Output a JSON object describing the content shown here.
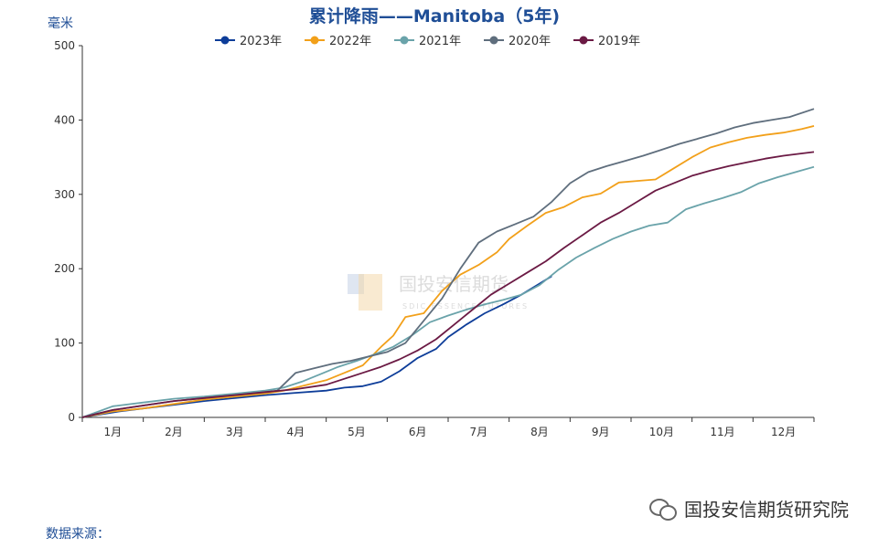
{
  "chart_data": {
    "type": "line",
    "title": "累计降雨——Manitoba（5年)",
    "ylabel": "毫米",
    "xlabel": "",
    "ylim": [
      0,
      500
    ],
    "yticks": [
      0,
      100,
      200,
      300,
      400,
      500
    ],
    "categories": [
      "1月",
      "2月",
      "3月",
      "4月",
      "5月",
      "6月",
      "7月",
      "8月",
      "9月",
      "10月",
      "11月",
      "12月"
    ],
    "xlim": [
      0,
      12
    ],
    "legend_position": "top-center",
    "series": [
      {
        "name": "2023年",
        "color": "#0d3d99",
        "x": [
          0,
          0.3,
          0.6,
          1.0,
          1.5,
          2.0,
          2.5,
          3.0,
          3.5,
          4.0,
          4.3,
          4.6,
          4.9,
          5.2,
          5.5,
          5.8,
          6.0,
          6.3,
          6.6,
          6.9,
          7.2,
          7.5,
          7.7
        ],
        "values": [
          0,
          4,
          8,
          12,
          17,
          22,
          26,
          30,
          33,
          36,
          40,
          42,
          48,
          62,
          80,
          92,
          108,
          125,
          140,
          152,
          165,
          180,
          190
        ]
      },
      {
        "name": "2022年",
        "color": "#f2a01a",
        "x": [
          0,
          0.5,
          1.0,
          1.5,
          2.0,
          2.5,
          3.0,
          3.3,
          3.6,
          4.0,
          4.3,
          4.6,
          4.9,
          5.1,
          5.3,
          5.6,
          5.9,
          6.2,
          6.5,
          6.8,
          7.0,
          7.3,
          7.6,
          7.9,
          8.2,
          8.5,
          8.8,
          9.1,
          9.4,
          9.7,
          10.0,
          10.3,
          10.6,
          10.9,
          11.2,
          11.5,
          11.8,
          12.0
        ],
        "values": [
          0,
          8,
          12,
          18,
          24,
          28,
          32,
          36,
          42,
          50,
          60,
          70,
          95,
          110,
          135,
          140,
          170,
          192,
          205,
          222,
          240,
          258,
          275,
          283,
          296,
          301,
          316,
          318,
          320,
          335,
          350,
          363,
          370,
          376,
          380,
          383,
          388,
          392
        ]
      },
      {
        "name": "2021年",
        "color": "#6aa3aa",
        "x": [
          0,
          0.5,
          1.0,
          1.5,
          2.0,
          2.5,
          3.0,
          3.3,
          3.6,
          3.9,
          4.2,
          4.5,
          4.8,
          5.1,
          5.4,
          5.7,
          6.0,
          6.3,
          6.6,
          6.9,
          7.2,
          7.5,
          7.8,
          8.1,
          8.4,
          8.7,
          9.0,
          9.3,
          9.6,
          9.9,
          10.2,
          10.5,
          10.8,
          11.1,
          11.4,
          11.7,
          12.0
        ],
        "values": [
          0,
          15,
          20,
          25,
          28,
          32,
          36,
          40,
          48,
          58,
          68,
          76,
          85,
          95,
          110,
          128,
          137,
          145,
          152,
          158,
          165,
          178,
          198,
          215,
          228,
          240,
          250,
          258,
          262,
          280,
          288,
          295,
          303,
          315,
          323,
          330,
          337
        ]
      },
      {
        "name": "2020年",
        "color": "#5f6e7d",
        "x": [
          0,
          0.5,
          1.0,
          1.5,
          2.0,
          2.5,
          3.0,
          3.2,
          3.5,
          3.8,
          4.1,
          4.4,
          4.7,
          5.0,
          5.3,
          5.6,
          5.9,
          6.2,
          6.5,
          6.8,
          7.1,
          7.4,
          7.7,
          8.0,
          8.3,
          8.6,
          8.9,
          9.2,
          9.5,
          9.8,
          10.1,
          10.4,
          10.7,
          11.0,
          11.3,
          11.6,
          12.0
        ],
        "values": [
          0,
          10,
          16,
          22,
          26,
          30,
          34,
          36,
          60,
          66,
          72,
          76,
          82,
          88,
          100,
          130,
          160,
          200,
          235,
          250,
          260,
          270,
          290,
          315,
          330,
          338,
          345,
          352,
          360,
          368,
          375,
          382,
          390,
          396,
          400,
          404,
          415
        ]
      },
      {
        "name": "2019年",
        "color": "#6b1a44",
        "x": [
          0,
          0.5,
          1.0,
          1.5,
          2.0,
          2.5,
          3.0,
          3.5,
          4.0,
          4.3,
          4.6,
          4.9,
          5.2,
          5.5,
          5.8,
          6.1,
          6.4,
          6.7,
          7.0,
          7.3,
          7.6,
          7.9,
          8.2,
          8.5,
          8.8,
          9.1,
          9.4,
          9.7,
          10.0,
          10.3,
          10.6,
          10.9,
          11.2,
          11.5,
          11.8,
          12.0
        ],
        "values": [
          0,
          10,
          16,
          22,
          26,
          30,
          34,
          38,
          44,
          52,
          60,
          68,
          78,
          90,
          105,
          125,
          145,
          165,
          180,
          195,
          210,
          228,
          245,
          262,
          275,
          290,
          305,
          315,
          325,
          332,
          338,
          343,
          348,
          352,
          355,
          357
        ]
      }
    ]
  },
  "footer": {
    "source_label": "数据来源：",
    "brand": "国投安信期货研究院"
  },
  "watermark": {
    "cn": "国投安信期货",
    "en": "SDIC ESSENCE FUTURES"
  }
}
